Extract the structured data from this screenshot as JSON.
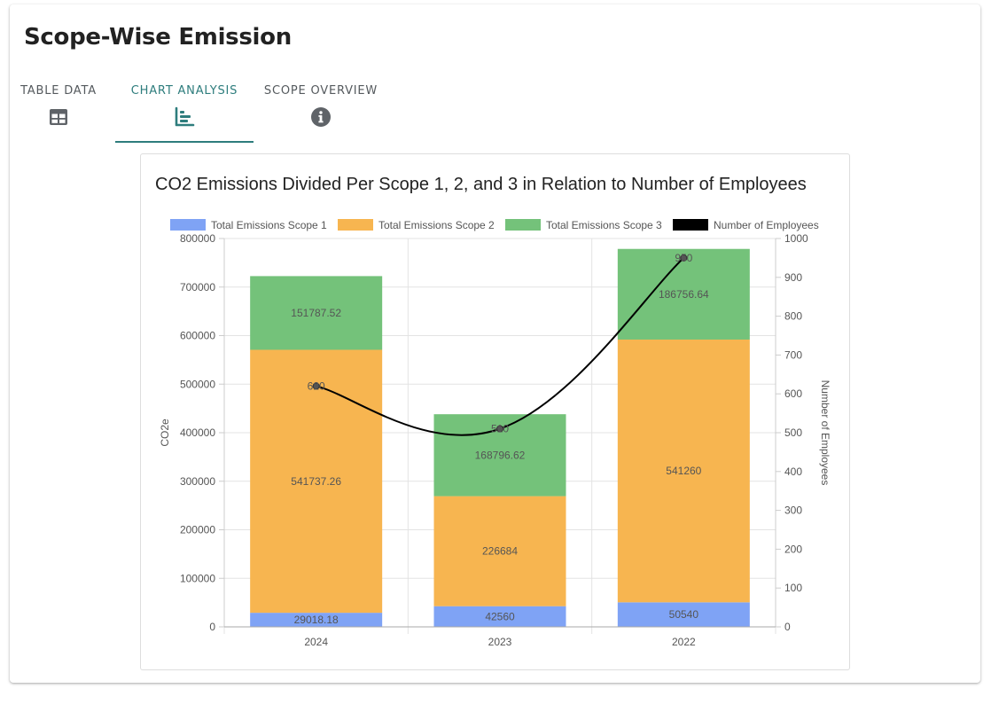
{
  "page": {
    "title": "Scope-Wise Emission"
  },
  "tabs": [
    {
      "label": "TABLE DATA",
      "icon": "table-icon"
    },
    {
      "label": "CHART ANALYSIS",
      "icon": "bar-chart-icon"
    },
    {
      "label": "SCOPE OVERVIEW",
      "icon": "info-icon"
    }
  ],
  "colors": {
    "accent": "#2e7d7d",
    "scope1": "#7fa3f5",
    "scope2": "#f7b550",
    "scope3": "#74c27a",
    "employees": "#000000"
  },
  "chart_data": {
    "type": "bar",
    "stacked": true,
    "title": "CO2 Emissions Divided Per Scope 1, 2, and 3 in Relation to Number of Employees",
    "categories": [
      "2024",
      "2023",
      "2022"
    ],
    "xlabel": "",
    "ylabel": "CO2e",
    "y2label": "Number of Employees",
    "ylim": [
      0,
      800000
    ],
    "y2lim": [
      0,
      1000
    ],
    "yticks": [
      "0",
      "100000",
      "200000",
      "300000",
      "400000",
      "500000",
      "600000",
      "700000",
      "800000"
    ],
    "y2ticks": [
      "0",
      "100",
      "200",
      "300",
      "400",
      "500",
      "600",
      "700",
      "800",
      "900",
      "1000"
    ],
    "legend_position": "top",
    "grid": true,
    "series": [
      {
        "name": "Total Emissions Scope 1",
        "type": "bar",
        "values": [
          29018.18,
          42560,
          50540
        ],
        "labels": [
          "29018.18",
          "42560",
          "50540"
        ]
      },
      {
        "name": "Total Emissions Scope 2",
        "type": "bar",
        "values": [
          541737.26,
          226684,
          541260
        ],
        "labels": [
          "541737.26",
          "226684",
          "541260"
        ]
      },
      {
        "name": "Total Emissions Scope 3",
        "type": "bar",
        "values": [
          151787.52,
          168796.62,
          186756.64
        ],
        "labels": [
          "151787.52",
          "168796.62",
          "186756.64"
        ]
      },
      {
        "name": "Number of Employees",
        "type": "line",
        "axis": "right",
        "values": [
          620,
          510,
          950
        ],
        "labels": [
          "620",
          "510",
          "950"
        ]
      }
    ]
  }
}
